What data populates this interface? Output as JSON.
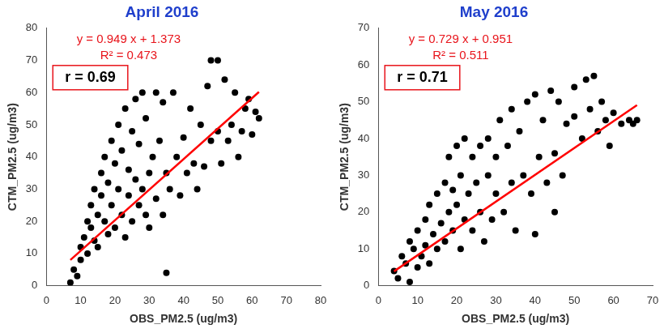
{
  "chart_data": [
    {
      "type": "scatter",
      "title": "April 2016",
      "x_label": "OBS_PM2.5 (ug/m3)",
      "y_label": "CTM_PM2.5 (ug/m3)",
      "annotations": [
        "y = 0.949 x + 1.373",
        "R² = 0.473",
        "r = 0.69"
      ],
      "xlim": [
        0,
        80
      ],
      "xticks": [
        0,
        10,
        20,
        30,
        40,
        50,
        60,
        70,
        80
      ],
      "ylim": [
        0,
        80
      ],
      "yticks": [
        0,
        10,
        20,
        30,
        40,
        50,
        60,
        70,
        80
      ],
      "grid": false,
      "series": [
        {
          "type": "scatter",
          "color": "#000000",
          "marker": "circle",
          "x": [
            7,
            8,
            9,
            10,
            10,
            11,
            12,
            12,
            13,
            13,
            14,
            14,
            15,
            15,
            16,
            16,
            17,
            17,
            18,
            18,
            19,
            19,
            20,
            20,
            21,
            21,
            22,
            22,
            23,
            23,
            24,
            24,
            25,
            25,
            26,
            26,
            27,
            27,
            28,
            28,
            29,
            29,
            30,
            30,
            31,
            32,
            32,
            33,
            34,
            34,
            35,
            36,
            37,
            38,
            39,
            40,
            41,
            42,
            43,
            44,
            45,
            46,
            47,
            48,
            48,
            50,
            50,
            51,
            52,
            53,
            54,
            55,
            56,
            57,
            58,
            59,
            60,
            61,
            62,
            35
          ],
          "values": [
            1,
            5,
            3,
            8,
            12,
            15,
            10,
            20,
            18,
            25,
            14,
            30,
            22,
            12,
            28,
            35,
            20,
            40,
            16,
            32,
            25,
            45,
            18,
            38,
            30,
            50,
            22,
            42,
            15,
            55,
            28,
            36,
            20,
            48,
            33,
            58,
            25,
            44,
            30,
            60,
            22,
            52,
            35,
            18,
            40,
            27,
            60,
            45,
            22,
            57,
            35,
            30,
            60,
            40,
            28,
            46,
            35,
            55,
            38,
            30,
            50,
            37,
            62,
            45,
            70,
            48,
            70,
            38,
            64,
            45,
            50,
            60,
            40,
            48,
            55,
            58,
            47,
            54,
            52,
            4
          ]
        },
        {
          "type": "line",
          "color": "#ff0000",
          "x": [
            7,
            62
          ],
          "values": [
            8.0,
            60.2
          ]
        }
      ]
    },
    {
      "type": "scatter",
      "title": "May 2016",
      "x_label": "OBS_PM2.5 (ug/m3)",
      "y_label": "CTM_PM2.5 (ug/m3)",
      "annotations": [
        "y = 0.729 x + 0.951",
        "R² = 0.511",
        "r = 0.71"
      ],
      "xlim": [
        0,
        70
      ],
      "xticks": [
        0,
        10,
        20,
        30,
        40,
        50,
        60,
        70
      ],
      "ylim": [
        0,
        70
      ],
      "yticks": [
        0,
        10,
        20,
        30,
        40,
        50,
        60,
        70
      ],
      "grid": false,
      "series": [
        {
          "type": "scatter",
          "color": "#000000",
          "marker": "circle",
          "x": [
            4,
            5,
            6,
            7,
            8,
            8,
            9,
            10,
            10,
            11,
            12,
            12,
            13,
            13,
            14,
            15,
            15,
            16,
            17,
            17,
            18,
            18,
            19,
            19,
            20,
            20,
            21,
            21,
            22,
            22,
            23,
            24,
            24,
            25,
            26,
            26,
            27,
            28,
            28,
            29,
            30,
            30,
            31,
            32,
            33,
            34,
            34,
            35,
            36,
            37,
            38,
            39,
            40,
            41,
            42,
            43,
            44,
            45,
            46,
            47,
            48,
            50,
            50,
            52,
            53,
            54,
            55,
            56,
            57,
            58,
            59,
            60,
            62,
            64,
            65,
            66,
            40,
            45
          ],
          "values": [
            4,
            2,
            8,
            6,
            1,
            12,
            10,
            5,
            15,
            8,
            18,
            11,
            6,
            22,
            14,
            10,
            25,
            17,
            12,
            28,
            20,
            35,
            15,
            26,
            22,
            38,
            10,
            30,
            18,
            40,
            25,
            15,
            35,
            28,
            20,
            38,
            12,
            30,
            40,
            18,
            35,
            25,
            45,
            20,
            38,
            28,
            48,
            15,
            42,
            30,
            50,
            25,
            52,
            35,
            45,
            28,
            53,
            36,
            50,
            30,
            44,
            46,
            54,
            40,
            56,
            48,
            57,
            42,
            50,
            45,
            38,
            47,
            44,
            45,
            44,
            45,
            14,
            20
          ]
        },
        {
          "type": "line",
          "color": "#ff0000",
          "x": [
            4,
            66
          ],
          "values": [
            3.9,
            49.1
          ]
        }
      ]
    }
  ]
}
